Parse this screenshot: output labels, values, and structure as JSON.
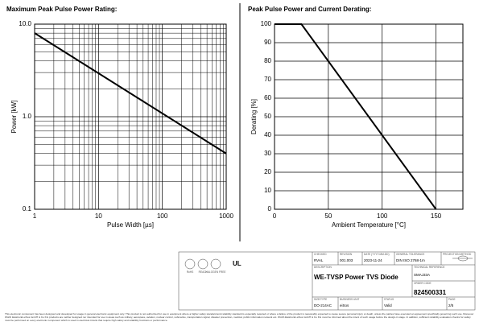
{
  "chart_data": [
    {
      "type": "line",
      "title": "Maximum Peak Pulse Power Rating:",
      "x_label": "Pulse Width [µs]",
      "y_label": "Power [kW]",
      "x": [
        1,
        1000
      ],
      "series": [
        {
          "name": "Power",
          "color": "#000000",
          "values": [
            8,
            0.4
          ]
        }
      ],
      "xlim": [
        1,
        1000
      ],
      "ylim": [
        0.1,
        10
      ],
      "xscale": "log",
      "yscale": "log",
      "xticks": [
        1,
        10,
        100,
        1000
      ],
      "yticks": [
        0.1,
        {
          "value": 1,
          "label": "1.0"
        },
        {
          "value": 10,
          "label": "10.0"
        }
      ],
      "grid": true
    },
    {
      "type": "line",
      "title": "Peak Pulse Power and Current Derating:",
      "x_label": "Ambient Temperature [°C]",
      "y_label": "Derating [%]",
      "x": [
        0,
        25,
        150
      ],
      "series": [
        {
          "name": "Derating",
          "color": "#000000",
          "values": [
            100,
            100,
            0
          ]
        }
      ],
      "xlim": [
        0,
        175
      ],
      "ylim": [
        0,
        100
      ],
      "xscale": "linear",
      "yscale": "linear",
      "xticks": [
        0,
        50,
        100,
        150
      ],
      "yticks": [
        0,
        10,
        20,
        30,
        40,
        50,
        60,
        70,
        80,
        90,
        100
      ],
      "grid": true
    }
  ],
  "title_block": {
    "badges": [
      "RoHS",
      "REACh",
      "HALOGEN FREE"
    ],
    "fields": [
      {
        "label": "CHECKED",
        "value": "RVAL"
      },
      {
        "label": "REVISION",
        "value": "001.003"
      },
      {
        "label": "DATE (YYYY-MM-DD)",
        "value": "2023-11-24"
      },
      {
        "label": "GENERAL TOLERANCE",
        "value": "DIN ISO 2768-1m"
      },
      {
        "label": "PROJECTION METHOD",
        "value": ""
      }
    ],
    "description_label": "DESCRIPTION",
    "description": "WE-TVSP Power TVS Diode",
    "reference_label": "TECHNICAL REFERENCE",
    "reference": "SMAJ33A",
    "order_label": "ORDER CODE",
    "order_code": "824500331",
    "bottom": [
      {
        "label": "SIZE/TYPE",
        "value": "DO-214AC"
      },
      {
        "label": "BUSINESS UNIT",
        "value": "eiSos"
      },
      {
        "label": "STATUS",
        "value": "Valid"
      },
      {
        "label": "PAGE",
        "value": "2/5"
      }
    ]
  },
  "footer": "This electronic component has been designed and developed for usage in general electronic equipment only. This product is not authorized for use in equipment where a higher safety standard and reliability standard is especially required or where a failure of the product is reasonably expected to cause severe personal injury or death, unless the parties have executed an agreement specifically governing such use. Moreover Würth Elektronik eiSos GmbH & Co KG products are neither designed nor intended for use in areas such as military, aerospace, aviation, nuclear control, submarine, transportation signal, disaster prevention, medical, public information network etc. Würth Elektronik eiSos GmbH & Co KG must be informed about the intent of such usage before the design-in stage. In addition, sufficient reliability evaluation checks for safety must be performed on every electronic component which is used in electrical circuits that require high safety and reliability functions or performance."
}
